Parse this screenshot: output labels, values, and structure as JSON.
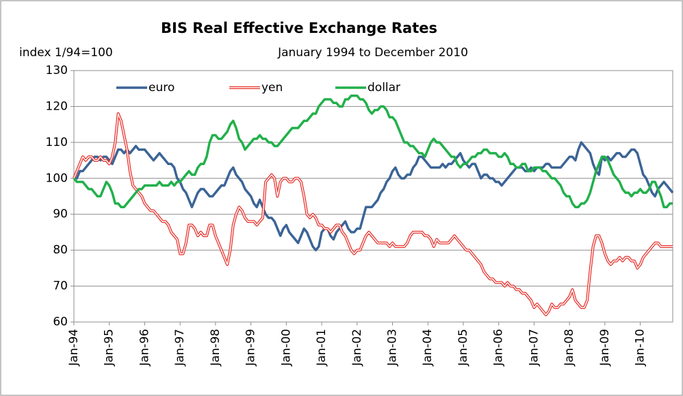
{
  "chart_data": {
    "type": "line",
    "title": "BIS Real Effective Exchange Rates",
    "subtitle": "January 1994 to December 2010",
    "ylabel": "index 1/94=100",
    "categories": [
      "Jan-94",
      null,
      null,
      null,
      null,
      null,
      null,
      null,
      null,
      null,
      null,
      null,
      "Jan-95",
      null,
      null,
      null,
      null,
      null,
      null,
      null,
      null,
      null,
      null,
      null,
      "Jan-96",
      null,
      null,
      null,
      null,
      null,
      null,
      null,
      null,
      null,
      null,
      null,
      "Jan-97",
      null,
      null,
      null,
      null,
      null,
      null,
      null,
      null,
      null,
      null,
      null,
      "Jan-98",
      null,
      null,
      null,
      null,
      null,
      null,
      null,
      null,
      null,
      null,
      null,
      "Jan-99",
      null,
      null,
      null,
      null,
      null,
      null,
      null,
      null,
      null,
      null,
      null,
      "Jan-00",
      null,
      null,
      null,
      null,
      null,
      null,
      null,
      null,
      null,
      null,
      null,
      "Jan-01",
      null,
      null,
      null,
      null,
      null,
      null,
      null,
      null,
      null,
      null,
      null,
      "Jan-02",
      null,
      null,
      null,
      null,
      null,
      null,
      null,
      null,
      null,
      null,
      null,
      "Jan-03",
      null,
      null,
      null,
      null,
      null,
      null,
      null,
      null,
      null,
      null,
      null,
      "Jan-04",
      null,
      null,
      null,
      null,
      null,
      null,
      null,
      null,
      null,
      null,
      null,
      "Jan-05",
      null,
      null,
      null,
      null,
      null,
      null,
      null,
      null,
      null,
      null,
      null,
      "Jan-06",
      null,
      null,
      null,
      null,
      null,
      null,
      null,
      null,
      null,
      null,
      null,
      "Jan-07",
      null,
      null,
      null,
      null,
      null,
      null,
      null,
      null,
      null,
      null,
      null,
      "Jan-08",
      null,
      null,
      null,
      null,
      null,
      null,
      null,
      null,
      null,
      null,
      null,
      "Jan-09",
      null,
      null,
      null,
      null,
      null,
      null,
      null,
      null,
      null,
      null,
      null,
      "Jan-10",
      null,
      null,
      null,
      null,
      null,
      null,
      null,
      null,
      null,
      null,
      null
    ],
    "series": [
      {
        "name": "euro",
        "color": "#3b6496",
        "values": [
          100,
          100,
          102,
          102,
          103,
          104,
          105,
          106,
          106,
          105,
          106,
          106,
          105,
          104,
          106,
          108,
          108,
          107,
          108,
          107,
          108,
          109,
          108,
          108,
          108,
          107,
          106,
          105,
          106,
          107,
          106,
          105,
          104,
          104,
          103,
          100,
          99,
          97,
          96,
          94,
          92,
          94,
          96,
          97,
          97,
          96,
          95,
          95,
          96,
          97,
          98,
          98,
          100,
          102,
          103,
          101,
          100,
          99,
          97,
          96,
          95,
          93,
          92,
          94,
          92,
          90,
          89,
          89,
          88,
          86,
          84,
          86,
          87,
          85,
          84,
          83,
          82,
          84,
          86,
          85,
          83,
          81,
          80,
          81,
          85,
          86,
          86,
          84,
          83,
          85,
          86,
          87,
          88,
          86,
          85,
          85,
          86,
          86,
          89,
          92,
          92,
          92,
          93,
          94,
          96,
          97,
          99,
          100,
          102,
          103,
          101,
          100,
          100,
          101,
          101,
          103,
          104,
          106,
          106,
          105,
          104,
          103,
          103,
          103,
          103,
          104,
          103,
          104,
          104,
          105,
          106,
          107,
          105,
          104,
          103,
          104,
          104,
          102,
          100,
          101,
          101,
          100,
          100,
          99,
          99,
          98,
          99,
          100,
          101,
          102,
          103,
          103,
          103,
          102,
          102,
          103,
          102,
          103,
          103,
          103,
          104,
          104,
          103,
          103,
          103,
          103,
          104,
          105,
          106,
          106,
          105,
          108,
          110,
          109,
          108,
          107,
          104,
          102,
          101,
          106,
          105,
          106,
          105,
          106,
          107,
          107,
          106,
          106,
          107,
          108,
          108,
          107,
          104,
          101,
          100,
          98,
          96,
          95,
          97,
          98,
          99,
          98,
          97,
          96
        ]
      },
      {
        "name": "yen",
        "color": "#e8302a",
        "line_style": "double",
        "values": [
          100,
          102,
          104,
          106,
          105,
          106,
          106,
          105,
          105,
          106,
          105,
          105,
          104,
          106,
          110,
          118,
          116,
          112,
          108,
          102,
          98,
          97,
          96,
          95,
          93,
          92,
          91,
          91,
          90,
          89,
          88,
          88,
          87,
          85,
          84,
          83,
          79,
          79,
          82,
          87,
          87,
          86,
          84,
          85,
          84,
          84,
          87,
          87,
          84,
          82,
          80,
          78,
          76,
          80,
          87,
          90,
          92,
          91,
          89,
          88,
          88,
          88,
          87,
          88,
          89,
          99,
          100,
          101,
          100,
          95,
          99,
          100,
          100,
          99,
          99,
          100,
          100,
          99,
          95,
          90,
          89,
          90,
          89,
          87,
          87,
          86,
          86,
          85,
          86,
          87,
          87,
          85,
          84,
          82,
          80,
          79,
          80,
          80,
          82,
          84,
          85,
          84,
          83,
          82,
          82,
          82,
          82,
          81,
          82,
          81,
          81,
          81,
          81,
          82,
          84,
          85,
          85,
          85,
          85,
          84,
          84,
          83,
          81,
          83,
          82,
          82,
          82,
          82,
          83,
          84,
          83,
          82,
          81,
          80,
          80,
          79,
          78,
          77,
          76,
          74,
          73,
          72,
          72,
          71,
          71,
          71,
          70,
          71,
          70,
          70,
          69,
          69,
          68,
          68,
          67,
          66,
          64,
          65,
          64,
          63,
          62,
          63,
          65,
          64,
          64,
          65,
          65,
          66,
          67,
          69,
          66,
          65,
          64,
          64,
          66,
          74,
          81,
          84,
          84,
          82,
          79,
          77,
          76,
          77,
          77,
          78,
          77,
          78,
          78,
          77,
          77,
          75,
          76,
          78,
          79,
          80,
          81,
          82,
          82,
          81,
          81,
          81,
          81,
          81
        ]
      },
      {
        "name": "dollar",
        "color": "#22b04b",
        "values": [
          100,
          99,
          99,
          99,
          98,
          97,
          97,
          96,
          95,
          95,
          97,
          99,
          98,
          96,
          93,
          93,
          92,
          92,
          93,
          94,
          95,
          96,
          97,
          97,
          98,
          98,
          98,
          98,
          98,
          99,
          98,
          98,
          98,
          99,
          98,
          99,
          99,
          100,
          101,
          102,
          101,
          101,
          103,
          104,
          104,
          106,
          110,
          112,
          112,
          111,
          111,
          112,
          113,
          115,
          116,
          114,
          111,
          110,
          108,
          109,
          110,
          111,
          111,
          112,
          111,
          111,
          110,
          110,
          109,
          109,
          110,
          111,
          112,
          113,
          114,
          114,
          114,
          115,
          116,
          116,
          117,
          118,
          118,
          120,
          121,
          122,
          122,
          122,
          121,
          121,
          120,
          120,
          122,
          122,
          123,
          123,
          123,
          122,
          122,
          121,
          119,
          118,
          119,
          119,
          120,
          120,
          119,
          117,
          117,
          116,
          114,
          112,
          110,
          110,
          109,
          109,
          108,
          107,
          107,
          106,
          108,
          110,
          111,
          110,
          110,
          109,
          108,
          107,
          106,
          106,
          104,
          103,
          104,
          104,
          105,
          106,
          106,
          107,
          107,
          108,
          108,
          107,
          107,
          107,
          106,
          106,
          107,
          106,
          104,
          104,
          103,
          103,
          104,
          104,
          102,
          102,
          103,
          103,
          103,
          102,
          102,
          101,
          100,
          100,
          99,
          98,
          96,
          95,
          95,
          93,
          92,
          92,
          93,
          93,
          94,
          96,
          99,
          102,
          104,
          106,
          106,
          105,
          103,
          101,
          100,
          99,
          97,
          96,
          96,
          95,
          96,
          96,
          97,
          96,
          96,
          97,
          99,
          99,
          97,
          95,
          92,
          92,
          93,
          93
        ]
      }
    ],
    "ylim": [
      60,
      130
    ],
    "yticks": [
      60,
      70,
      80,
      90,
      100,
      110,
      120,
      130
    ],
    "grid": true,
    "legend": "top"
  }
}
